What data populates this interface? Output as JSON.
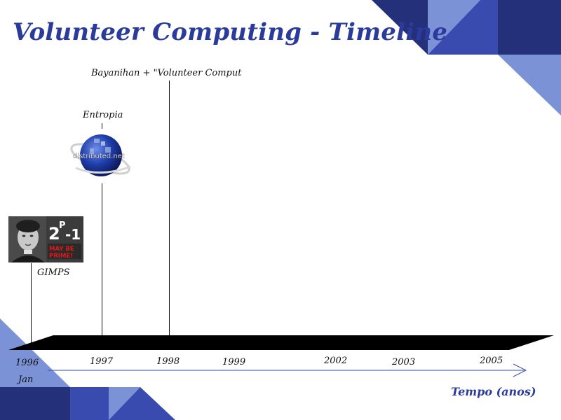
{
  "slide": {
    "title": "Volunteer Computing - Timeline"
  },
  "timeline": {
    "events": [
      {
        "id": "gimps",
        "label": "GIMPS"
      },
      {
        "id": "entropia",
        "label": "Entropia"
      },
      {
        "id": "bayanihan",
        "label": "Bayanihan + \"Volunteer Computer"
      }
    ],
    "years": [
      {
        "line1": "1996",
        "line2": "Jan"
      },
      {
        "line1": "1997"
      },
      {
        "line1": "1998"
      },
      {
        "line1": "1999"
      },
      {
        "line1": "2002"
      },
      {
        "line1": "2003"
      },
      {
        "line1": "2005"
      }
    ],
    "axis_caption": "Tempo (anos)"
  },
  "logos": {
    "gimps_formula": {
      "base": "2",
      "exponent": "P",
      "suffix": "-1",
      "caption_line1": "MAY BE",
      "caption_line2": "PRIME!"
    },
    "distributed_net": "distributed.net"
  },
  "colors": {
    "title": "#2b3b9b",
    "accent_dark": "#25307a",
    "accent_mid": "#3a4bb0",
    "accent_light": "#7b93d6",
    "bar": "#000000"
  }
}
